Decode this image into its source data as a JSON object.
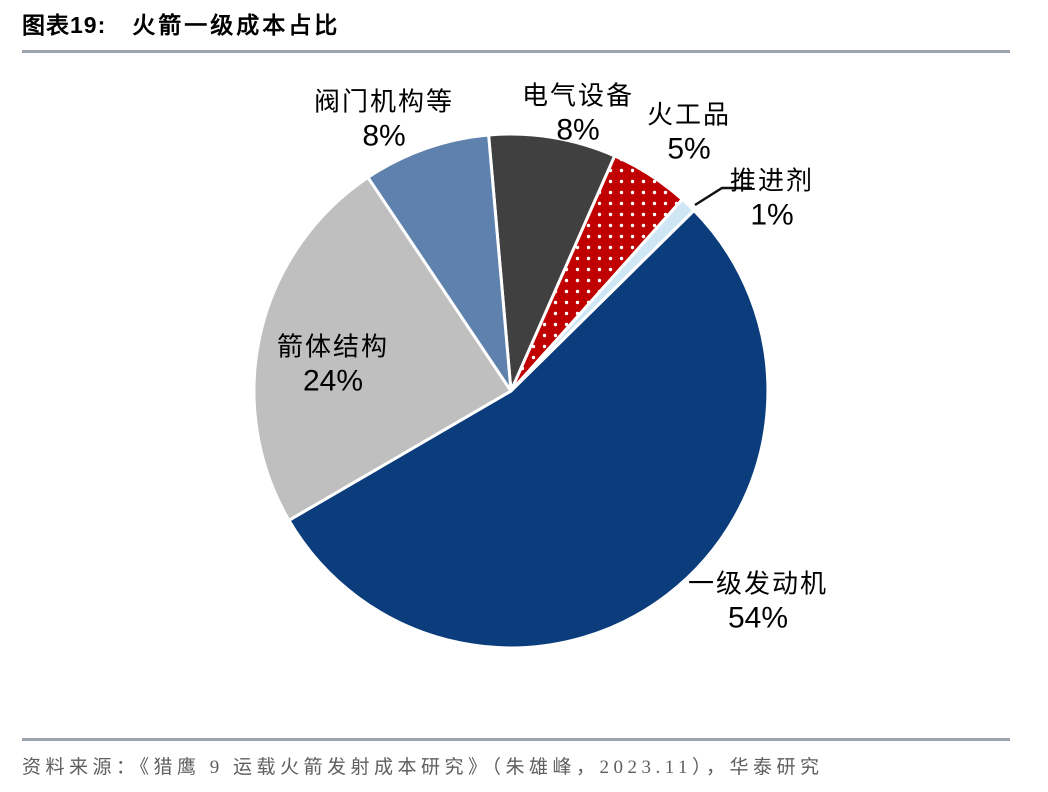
{
  "header": {
    "figure_tag": "图表19:",
    "figure_title": "火箭一级成本占比"
  },
  "footer": {
    "source_text": "资料来源：《猎鹰 9 运载火箭发射成本研究》（朱雄峰，2023.11），华泰研究"
  },
  "chart_data": {
    "type": "pie",
    "title": "火箭一级成本占比",
    "unit": "percent",
    "direction": "clockwise",
    "start_angle_deg_from_top": -5,
    "legend": "none",
    "slices": [
      {
        "key": "electrical-equipment",
        "label": "电气设备",
        "value": 8,
        "pct_label": "8%",
        "color": "#404040"
      },
      {
        "key": "pyrotechnics",
        "label": "火工品",
        "value": 5,
        "pct_label": "5%",
        "color": "#c00000",
        "pattern": "white-dots"
      },
      {
        "key": "propellant",
        "label": "推进剂",
        "value": 1,
        "pct_label": "1%",
        "color": "#cfe6f5",
        "callout": true
      },
      {
        "key": "first-stage-engine",
        "label": "一级发动机",
        "value": 54,
        "pct_label": "54%",
        "color": "#0b3d7c"
      },
      {
        "key": "rocket-body-structure",
        "label": "箭体结构",
        "value": 24,
        "pct_label": "24%",
        "color": "#bfbfbf"
      },
      {
        "key": "valves-mechanisms",
        "label": "阀门机构等",
        "value": 8,
        "pct_label": "8%",
        "color": "#5e82ad"
      }
    ],
    "labels_position": "outside, except rocket-body-structure inside slice",
    "slice_border_color": "#ffffff"
  },
  "colors": {
    "background": "#ffffff",
    "rule": "#9aa4ae",
    "text": "#000000",
    "footer_text": "#5f5f5f",
    "callout_line": "#111111"
  }
}
